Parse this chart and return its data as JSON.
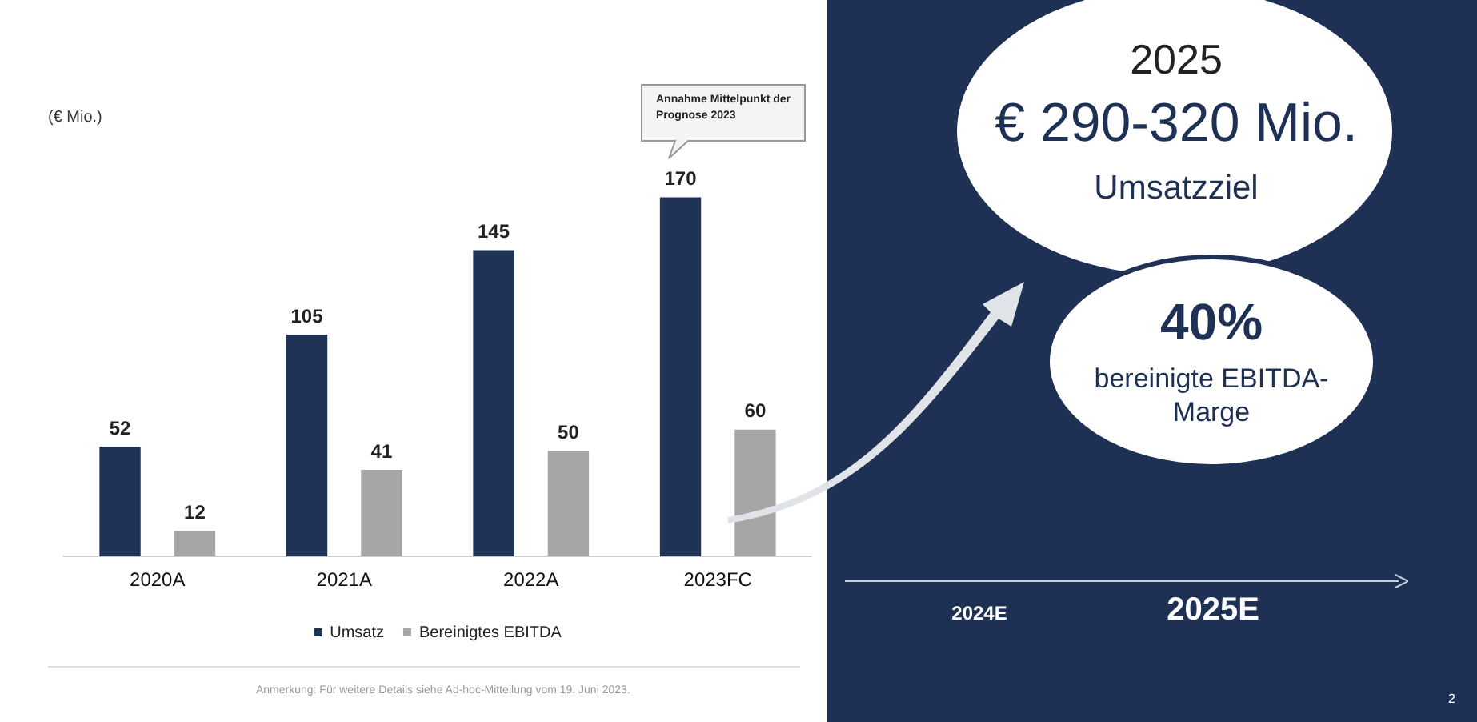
{
  "chart_data": {
    "type": "bar",
    "ylabel": "(€ Mio.)",
    "categories": [
      "2020A",
      "2021A",
      "2022A",
      "2023FC"
    ],
    "series": [
      {
        "name": "Umsatz",
        "color": "#1f3356",
        "values": [
          52,
          105,
          145,
          170
        ]
      },
      {
        "name": "Bereinigtes EBITDA",
        "color": "#a6a6a6",
        "values": [
          12,
          41,
          50,
          60
        ]
      }
    ],
    "data_labels": true,
    "grid": false,
    "legend": "bottom",
    "annotations": [
      "Annahme Mittelpunkt der Prognose 2023",
      "Anmerkung: Für weitere Details siehe Ad-hoc-Mitteilung vom 19. Juni 2023.",
      "2025",
      "€ 290-320 Mio.",
      "Umsatzziel",
      "40%",
      "bereinigte EBITDA-Marge",
      "2024E",
      "2025E",
      "2"
    ]
  }
}
